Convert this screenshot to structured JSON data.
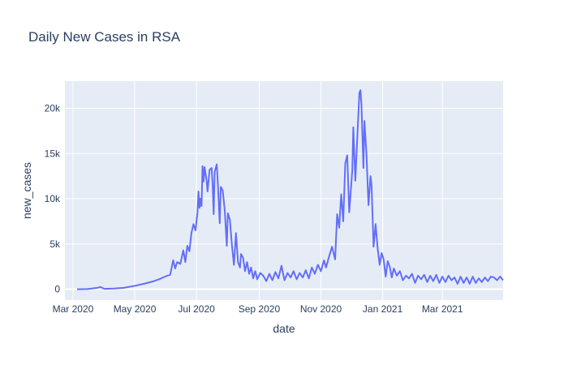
{
  "chart_data": {
    "type": "line",
    "title": "Daily New Cases in RSA",
    "xlabel": "date",
    "ylabel": "new_cases",
    "x_range": [
      "2020-02-22",
      "2021-04-30"
    ],
    "ylim": [
      -1200,
      23000
    ],
    "x_ticks": [
      {
        "date": "2020-03-01",
        "label": "Mar 2020"
      },
      {
        "date": "2020-05-01",
        "label": "May 2020"
      },
      {
        "date": "2020-07-01",
        "label": "Jul 2020"
      },
      {
        "date": "2020-09-01",
        "label": "Sep 2020"
      },
      {
        "date": "2020-11-01",
        "label": "Nov 2020"
      },
      {
        "date": "2021-01-01",
        "label": "Jan 2021"
      },
      {
        "date": "2021-03-01",
        "label": "Mar 2021"
      }
    ],
    "y_ticks": [
      {
        "value": 0,
        "label": "0"
      },
      {
        "value": 5000,
        "label": "5k"
      },
      {
        "value": 10000,
        "label": "10k"
      },
      {
        "value": 15000,
        "label": "15k"
      },
      {
        "value": 20000,
        "label": "20k"
      }
    ],
    "series": [
      {
        "name": "new_cases",
        "color": "#636efa",
        "points": [
          [
            "2020-03-05",
            1
          ],
          [
            "2020-03-15",
            20
          ],
          [
            "2020-03-25",
            150
          ],
          [
            "2020-03-28",
            250
          ],
          [
            "2020-04-01",
            50
          ],
          [
            "2020-04-10",
            80
          ],
          [
            "2020-04-20",
            150
          ],
          [
            "2020-04-30",
            350
          ],
          [
            "2020-05-10",
            600
          ],
          [
            "2020-05-20",
            900
          ],
          [
            "2020-05-25",
            1100
          ],
          [
            "2020-05-31",
            1400
          ],
          [
            "2020-06-02",
            1500
          ],
          [
            "2020-06-05",
            1600
          ],
          [
            "2020-06-08",
            3200
          ],
          [
            "2020-06-10",
            2300
          ],
          [
            "2020-06-12",
            3000
          ],
          [
            "2020-06-15",
            2800
          ],
          [
            "2020-06-18",
            4300
          ],
          [
            "2020-06-20",
            3000
          ],
          [
            "2020-06-22",
            4800
          ],
          [
            "2020-06-24",
            4200
          ],
          [
            "2020-06-26",
            6200
          ],
          [
            "2020-06-28",
            7200
          ],
          [
            "2020-06-30",
            6500
          ],
          [
            "2020-07-02",
            8500
          ],
          [
            "2020-07-03",
            10800
          ],
          [
            "2020-07-04",
            9000
          ],
          [
            "2020-07-05",
            10000
          ],
          [
            "2020-07-06",
            9200
          ],
          [
            "2020-07-07",
            13600
          ],
          [
            "2020-07-08",
            11900
          ],
          [
            "2020-07-09",
            13500
          ],
          [
            "2020-07-11",
            12000
          ],
          [
            "2020-07-12",
            10800
          ],
          [
            "2020-07-14",
            13200
          ],
          [
            "2020-07-16",
            13400
          ],
          [
            "2020-07-17",
            11500
          ],
          [
            "2020-07-18",
            8300
          ],
          [
            "2020-07-19",
            13000
          ],
          [
            "2020-07-21",
            13800
          ],
          [
            "2020-07-22",
            12000
          ],
          [
            "2020-07-24",
            7300
          ],
          [
            "2020-07-25",
            11300
          ],
          [
            "2020-07-27",
            10900
          ],
          [
            "2020-07-29",
            8700
          ],
          [
            "2020-07-31",
            4800
          ],
          [
            "2020-08-01",
            8400
          ],
          [
            "2020-08-03",
            7700
          ],
          [
            "2020-08-05",
            4900
          ],
          [
            "2020-08-07",
            2700
          ],
          [
            "2020-08-09",
            6200
          ],
          [
            "2020-08-11",
            3000
          ],
          [
            "2020-08-13",
            2400
          ],
          [
            "2020-08-14",
            3900
          ],
          [
            "2020-08-16",
            3500
          ],
          [
            "2020-08-18",
            2000
          ],
          [
            "2020-08-20",
            3000
          ],
          [
            "2020-08-22",
            1700
          ],
          [
            "2020-08-24",
            2400
          ],
          [
            "2020-08-26",
            1200
          ],
          [
            "2020-08-28",
            2000
          ],
          [
            "2020-08-30",
            1100
          ],
          [
            "2020-09-02",
            1800
          ],
          [
            "2020-09-05",
            1500
          ],
          [
            "2020-09-08",
            900
          ],
          [
            "2020-09-11",
            1700
          ],
          [
            "2020-09-14",
            1000
          ],
          [
            "2020-09-17",
            1900
          ],
          [
            "2020-09-20",
            1200
          ],
          [
            "2020-09-23",
            2600
          ],
          [
            "2020-09-26",
            1000
          ],
          [
            "2020-09-29",
            1800
          ],
          [
            "2020-10-02",
            1300
          ],
          [
            "2020-10-05",
            2000
          ],
          [
            "2020-10-08",
            1100
          ],
          [
            "2020-10-11",
            1800
          ],
          [
            "2020-10-14",
            1300
          ],
          [
            "2020-10-17",
            2100
          ],
          [
            "2020-10-20",
            1200
          ],
          [
            "2020-10-23",
            2400
          ],
          [
            "2020-10-26",
            1700
          ],
          [
            "2020-10-29",
            2700
          ],
          [
            "2020-11-01",
            2000
          ],
          [
            "2020-11-04",
            3200
          ],
          [
            "2020-11-06",
            2400
          ],
          [
            "2020-11-09",
            3600
          ],
          [
            "2020-11-12",
            4700
          ],
          [
            "2020-11-15",
            3300
          ],
          [
            "2020-11-17",
            8300
          ],
          [
            "2020-11-19",
            6800
          ],
          [
            "2020-11-21",
            10500
          ],
          [
            "2020-11-23",
            7500
          ],
          [
            "2020-11-25",
            13900
          ],
          [
            "2020-11-27",
            14800
          ],
          [
            "2020-11-29",
            8500
          ],
          [
            "2020-12-02",
            13200
          ],
          [
            "2020-12-03",
            17900
          ],
          [
            "2020-12-05",
            12000
          ],
          [
            "2020-12-07",
            16900
          ],
          [
            "2020-12-09",
            21700
          ],
          [
            "2020-12-10",
            22000
          ],
          [
            "2020-12-11",
            20500
          ],
          [
            "2020-12-13",
            13400
          ],
          [
            "2020-12-14",
            18600
          ],
          [
            "2020-12-16",
            15000
          ],
          [
            "2020-12-18",
            9300
          ],
          [
            "2020-12-20",
            12500
          ],
          [
            "2020-12-21",
            11500
          ],
          [
            "2020-12-23",
            4700
          ],
          [
            "2020-12-25",
            7200
          ],
          [
            "2020-12-27",
            4500
          ],
          [
            "2020-12-29",
            2700
          ],
          [
            "2020-12-31",
            4000
          ],
          [
            "2021-01-02",
            3300
          ],
          [
            "2021-01-04",
            1400
          ],
          [
            "2021-01-06",
            3100
          ],
          [
            "2021-01-08",
            2500
          ],
          [
            "2021-01-10",
            1300
          ],
          [
            "2021-01-12",
            2300
          ],
          [
            "2021-01-15",
            1500
          ],
          [
            "2021-01-18",
            2000
          ],
          [
            "2021-01-21",
            1000
          ],
          [
            "2021-01-24",
            1500
          ],
          [
            "2021-01-27",
            1200
          ],
          [
            "2021-01-30",
            1700
          ],
          [
            "2021-02-02",
            700
          ],
          [
            "2021-02-05",
            1500
          ],
          [
            "2021-02-08",
            1100
          ],
          [
            "2021-02-11",
            1600
          ],
          [
            "2021-02-14",
            800
          ],
          [
            "2021-02-17",
            1500
          ],
          [
            "2021-02-20",
            900
          ],
          [
            "2021-02-23",
            1600
          ],
          [
            "2021-02-26",
            700
          ],
          [
            "2021-03-01",
            1400
          ],
          [
            "2021-03-04",
            800
          ],
          [
            "2021-03-07",
            1500
          ],
          [
            "2021-03-10",
            1000
          ],
          [
            "2021-03-13",
            1300
          ],
          [
            "2021-03-16",
            600
          ],
          [
            "2021-03-19",
            1400
          ],
          [
            "2021-03-22",
            700
          ],
          [
            "2021-03-25",
            1300
          ],
          [
            "2021-03-28",
            600
          ],
          [
            "2021-03-31",
            1400
          ],
          [
            "2021-04-03",
            700
          ],
          [
            "2021-04-06",
            1200
          ],
          [
            "2021-04-09",
            800
          ],
          [
            "2021-04-12",
            1300
          ],
          [
            "2021-04-15",
            900
          ],
          [
            "2021-04-18",
            1400
          ],
          [
            "2021-04-21",
            1300
          ],
          [
            "2021-04-24",
            1000
          ],
          [
            "2021-04-27",
            1400
          ],
          [
            "2021-04-30",
            1000
          ]
        ]
      }
    ]
  }
}
